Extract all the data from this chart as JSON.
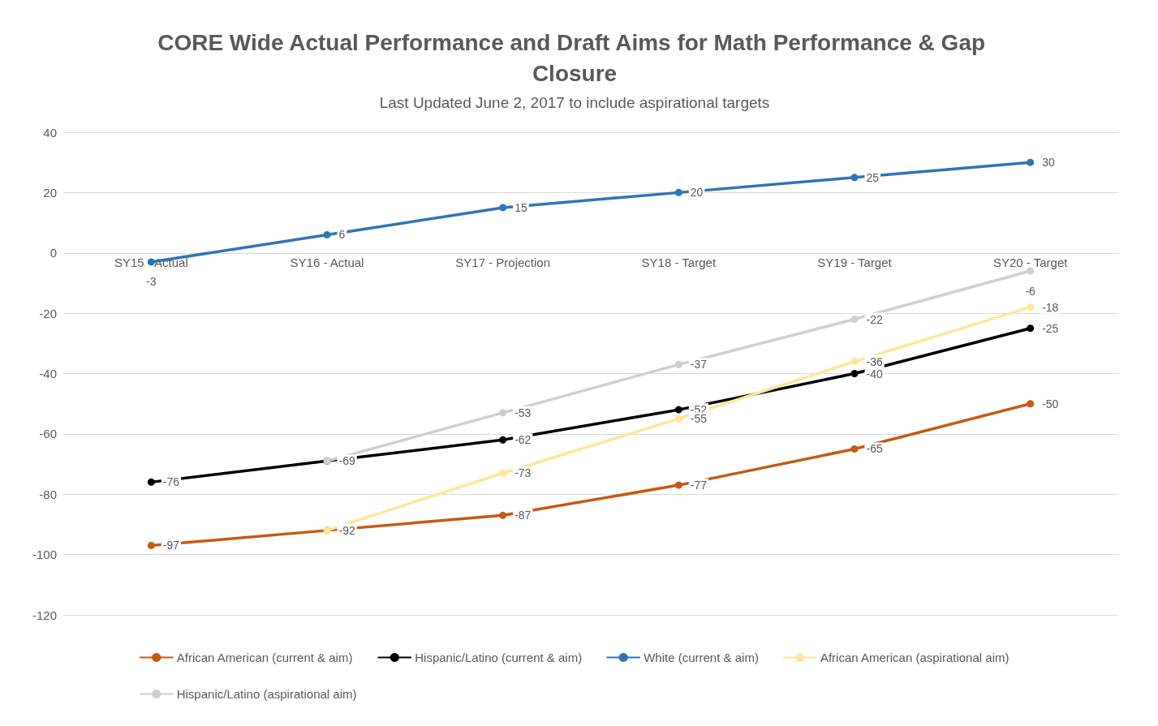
{
  "chart_data": {
    "type": "line",
    "title": "CORE Wide Actual Performance and Draft Aims for Math Performance & Gap Closure",
    "subtitle": "Last Updated June 2, 2017 to include aspirational targets",
    "categories": [
      "SY15 - Actual",
      "SY16 - Actual",
      "SY17 - Projection",
      "SY18 - Target",
      "SY19 - Target",
      "SY20 - Target"
    ],
    "series": [
      {
        "name": "African American (current & aim)",
        "color": "#c55a11",
        "values": [
          -97,
          -92,
          -87,
          -77,
          -65,
          -50
        ],
        "value_labels": [
          "-97",
          "-92",
          "-87",
          "-77",
          "-65",
          "-50"
        ]
      },
      {
        "name": "Hispanic/Latino (current & aim)",
        "color": "#000000",
        "values": [
          -76,
          -69,
          -62,
          -52,
          -40,
          -25
        ],
        "value_labels": [
          "-76",
          "-69",
          "-62",
          "-52",
          "-40",
          "-25"
        ]
      },
      {
        "name": "White (current & aim)",
        "color": "#2e75b6",
        "values": [
          -3,
          6,
          15,
          20,
          25,
          30
        ],
        "value_labels": [
          "-3",
          "6",
          "15",
          "20",
          "25",
          "30"
        ]
      },
      {
        "name": "African American (aspirational aim)",
        "color": "#ffe699",
        "values": [
          null,
          -92,
          -73,
          -55,
          -36,
          -18
        ],
        "value_labels": [
          null,
          null,
          "-73",
          "-55",
          "-36",
          "-18"
        ]
      },
      {
        "name": "Hispanic/Latino (aspirational aim)",
        "color": "#d0cece",
        "values": [
          null,
          -69,
          -53,
          -37,
          -22,
          -6
        ],
        "value_labels": [
          null,
          null,
          "-53",
          "-37",
          "-22",
          "-6"
        ]
      }
    ],
    "ylim": [
      -120,
      40
    ],
    "yticks": [
      -120,
      -100,
      -80,
      -60,
      -40,
      -20,
      0,
      20,
      40
    ],
    "grid": "y",
    "legend": "bottom",
    "marker": "circle",
    "line_style": "solid",
    "data_labels": true
  }
}
